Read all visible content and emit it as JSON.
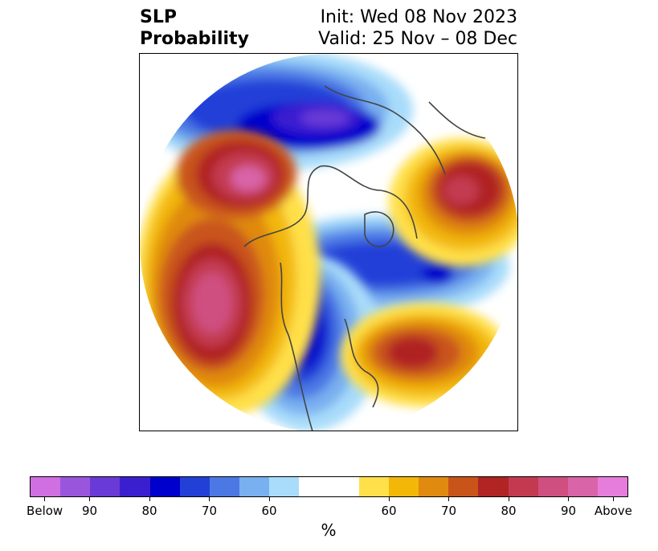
{
  "title": {
    "left_line1": "SLP",
    "left_line2": "Probability",
    "right_line1": "Init: Wed 08 Nov 2023",
    "right_line2": "Valid: 25 Nov – 08 Dec"
  },
  "colorbar": {
    "unit": "%",
    "colors": [
      "#d070e0",
      "#9a55dd",
      "#6a3ad6",
      "#3a1fd0",
      "#0000cc",
      "#2240d8",
      "#4c78e4",
      "#79b0f0",
      "#a8dcfa",
      "#ffffff",
      "#ffffff",
      "#ffe04a",
      "#f2b707",
      "#e08a10",
      "#c9541a",
      "#b02424",
      "#c33a50",
      "#cf5080",
      "#d964a8",
      "#e67ddc"
    ],
    "tick_labels": [
      "Below",
      "90",
      "80",
      "70",
      "60",
      "60",
      "70",
      "80",
      "90",
      "Above"
    ]
  },
  "map": {
    "projection": "north polar stereographic",
    "below_color": "#0000cc",
    "above_color": "#b02424"
  }
}
